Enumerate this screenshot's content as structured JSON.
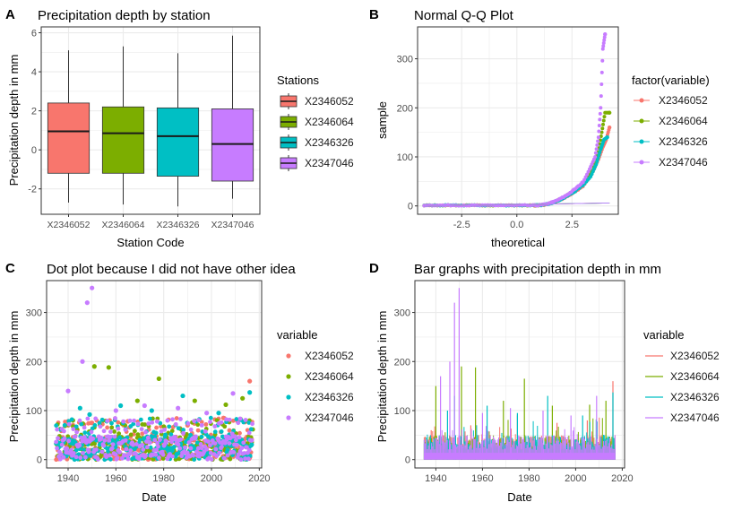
{
  "colors": {
    "X2346052": "#F8766D",
    "X2346064": "#7CAE00",
    "X2346326": "#00BFC4",
    "X2347046": "#C77CFF",
    "grid": "#EBEBEB",
    "border": "#333333",
    "tick_text": "#4D4D4D"
  },
  "chart_data": [
    {
      "panel_label": "A",
      "type": "boxplot",
      "title": "Precipitation depth by station",
      "xlabel": "Station Code",
      "ylabel": "Precipitation depth in mm",
      "ylim": [
        -3.3,
        6.3
      ],
      "yticks": [
        -2,
        0,
        2,
        4,
        6
      ],
      "grid": true,
      "legend": {
        "title": "Stations",
        "position": "right"
      },
      "categories": [
        "X2346052",
        "X2346064",
        "X2346326",
        "X2347046"
      ],
      "boxes": [
        {
          "name": "X2346052",
          "whisker_low": -2.7,
          "q1": -1.2,
          "median": 0.95,
          "q3": 2.4,
          "whisker_high": 5.1
        },
        {
          "name": "X2346064",
          "whisker_low": -2.8,
          "q1": -1.2,
          "median": 0.85,
          "q3": 2.2,
          "whisker_high": 5.3
        },
        {
          "name": "X2346326",
          "whisker_low": -2.9,
          "q1": -1.35,
          "median": 0.7,
          "q3": 2.15,
          "whisker_high": 4.95
        },
        {
          "name": "X2347046",
          "whisker_low": -2.5,
          "q1": -1.6,
          "median": 0.3,
          "q3": 2.1,
          "whisker_high": 5.85
        }
      ]
    },
    {
      "panel_label": "B",
      "type": "scatter",
      "title": "Normal Q-Q Plot",
      "xlabel": "theoretical",
      "ylabel": "sample",
      "xlim": [
        -4.5,
        4.6
      ],
      "ylim": [
        -17,
        365
      ],
      "xticks": [
        -2.5,
        0.0,
        2.5
      ],
      "xtick_labels": [
        "-2.5",
        "0.0",
        "2.5"
      ],
      "yticks": [
        0,
        100,
        200,
        300
      ],
      "grid": true,
      "legend": {
        "title": "factor(variable)",
        "position": "right"
      },
      "series": [
        {
          "name": "X2346052",
          "tail": [
            [
              3.0,
              40
            ],
            [
              3.4,
              65
            ],
            [
              3.7,
              95
            ],
            [
              3.9,
              120
            ],
            [
              4.05,
              135
            ],
            [
              4.2,
              160
            ]
          ]
        },
        {
          "name": "X2346064",
          "tail": [
            [
              3.0,
              45
            ],
            [
              3.4,
              72
            ],
            [
              3.7,
              110
            ],
            [
              3.85,
              150
            ],
            [
              4.0,
              190
            ],
            [
              4.2,
              190
            ]
          ]
        },
        {
          "name": "X2346326",
          "tail": [
            [
              3.0,
              42
            ],
            [
              3.35,
              60
            ],
            [
              3.6,
              85
            ],
            [
              3.8,
              115
            ],
            [
              3.95,
              135
            ],
            [
              4.1,
              140
            ]
          ]
        },
        {
          "name": "X2347046",
          "tail": [
            [
              3.0,
              48
            ],
            [
              3.3,
              75
            ],
            [
              3.55,
              100
            ],
            [
              3.7,
              140
            ],
            [
              3.8,
              200
            ],
            [
              3.9,
              320
            ],
            [
              4.0,
              350
            ]
          ]
        }
      ],
      "reference_line": {
        "from": [
          -4.2,
          -0.4
        ],
        "to": [
          4.2,
          6
        ]
      }
    },
    {
      "panel_label": "C",
      "type": "scatter",
      "title": "Dot plot because I did not have other idea",
      "xlabel": "Date",
      "ylabel": "Precipitation depth in mm",
      "xlim": [
        1931,
        2021
      ],
      "ylim": [
        -17,
        365
      ],
      "xticks": [
        1940,
        1960,
        1980,
        2000,
        2020
      ],
      "yticks": [
        0,
        100,
        200,
        300
      ],
      "grid": true,
      "legend": {
        "title": "variable",
        "position": "right"
      },
      "series": [
        {
          "name": "X2346052",
          "peaks": [
            [
              1940,
              70
            ],
            [
              1950,
              75
            ],
            [
              1965,
              78
            ],
            [
              1990,
              70
            ],
            [
              2005,
              85
            ],
            [
              2016,
              160
            ]
          ]
        },
        {
          "name": "X2346064",
          "peaks": [
            [
              1942,
              80
            ],
            [
              1951,
              190
            ],
            [
              1957,
              188
            ],
            [
              1969,
              120
            ],
            [
              1978,
              165
            ],
            [
              1993,
              120
            ],
            [
              2006,
              112
            ],
            [
              2013,
              125
            ]
          ]
        },
        {
          "name": "X2346326",
          "peaks": [
            [
              1945,
              105
            ],
            [
              1949,
              92
            ],
            [
              1962,
              110
            ],
            [
              1975,
              100
            ],
            [
              1988,
              130
            ],
            [
              2003,
              95
            ],
            [
              2016,
              137
            ]
          ]
        },
        {
          "name": "X2347046",
          "peaks": [
            [
              1940,
              140
            ],
            [
              1946,
              200
            ],
            [
              1948,
              320
            ],
            [
              1950,
              350
            ],
            [
              1960,
              100
            ],
            [
              1972,
              110
            ],
            [
              1986,
              105
            ],
            [
              1998,
              95
            ],
            [
              2009,
              135
            ]
          ]
        }
      ]
    },
    {
      "panel_label": "D",
      "type": "bar",
      "title": "Bar graphs with precipitation depth in mm",
      "xlabel": "Date",
      "ylabel": "Precipitation depth in mm",
      "xlim": [
        1931,
        2021
      ],
      "ylim": [
        -17,
        365
      ],
      "xticks": [
        1940,
        1960,
        1980,
        2000,
        2020
      ],
      "yticks": [
        0,
        100,
        200,
        300
      ],
      "grid": true,
      "legend": {
        "title": "variable",
        "position": "right"
      },
      "series": [
        {
          "name": "X2346052",
          "peaks": [
            [
              1938,
              60
            ],
            [
              1955,
              70
            ],
            [
              1975,
              90
            ],
            [
              1992,
              75
            ],
            [
              2005,
              80
            ],
            [
              2016,
              160
            ]
          ]
        },
        {
          "name": "X2346064",
          "peaks": [
            [
              1940,
              150
            ],
            [
              1951,
              190
            ],
            [
              1957,
              188
            ],
            [
              1969,
              120
            ],
            [
              1978,
              165
            ],
            [
              1990,
              110
            ],
            [
              2006,
              112
            ],
            [
              2013,
              120
            ]
          ]
        },
        {
          "name": "X2346326",
          "peaks": [
            [
              1945,
              100
            ],
            [
              1948,
              130
            ],
            [
              1962,
              110
            ],
            [
              1975,
              95
            ],
            [
              1988,
              130
            ],
            [
              2003,
              90
            ],
            [
              2016,
              137
            ]
          ]
        },
        {
          "name": "X2347046",
          "peaks": [
            [
              1942,
              170
            ],
            [
              1946,
              200
            ],
            [
              1948,
              320
            ],
            [
              1950,
              350
            ],
            [
              1960,
              95
            ],
            [
              1972,
              105
            ],
            [
              1986,
              100
            ],
            [
              1998,
              90
            ],
            [
              2009,
              130
            ]
          ]
        }
      ]
    }
  ]
}
